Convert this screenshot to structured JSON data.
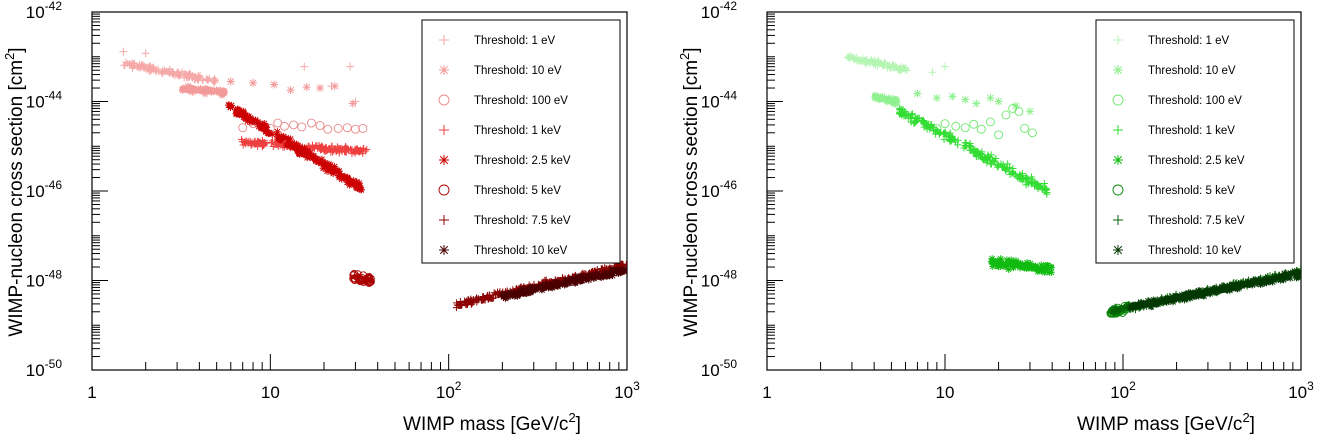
{
  "chart_data": [
    {
      "type": "scatter",
      "panel": "left",
      "xlabel": "WIMP mass [GeV/c²]",
      "ylabel": "WIMP-nucleon cross section [cm²]",
      "xscale": "log",
      "yscale": "log",
      "xlim": [
        1,
        1000
      ],
      "ylim": [
        1e-50,
        1e-42
      ],
      "x_tick_labels": [
        "1",
        "10",
        "10²",
        "10³"
      ],
      "y_tick_labels": [
        "10⁻⁵⁰",
        "10⁻⁴⁸",
        "10⁻⁴⁶",
        "10⁻⁴⁴",
        "10⁻⁴²"
      ],
      "grid": false,
      "legend_position": "top-right",
      "series": [
        {
          "name": "Threshold: 1 eV",
          "color": "#f6a8a8",
          "marker": "plus",
          "band": {
            "x": [
              1.5,
              5.0
            ],
            "y_log": [
              -43.15,
              -43.55
            ],
            "width_log": 0.18
          },
          "points": [
            [
              1.5,
              1.3e-43
            ],
            [
              2.0,
              1.2e-43
            ],
            [
              15.5,
              6e-44
            ],
            [
              22,
              2.2e-44
            ],
            [
              28,
              6e-44
            ],
            [
              30,
              1e-44
            ]
          ]
        },
        {
          "name": "Threshold: 10 eV",
          "color": "#f29a9a",
          "marker": "asterisk",
          "band": {
            "x": [
              3.2,
              5.6
            ],
            "y_log": [
              -43.7,
              -43.8
            ],
            "width_log": 0.18
          },
          "points": [
            [
              6.0,
              2.8e-44
            ],
            [
              8.0,
              2.6e-44
            ],
            [
              10.5,
              2.4e-44
            ],
            [
              13,
              1.8e-44
            ],
            [
              16,
              2.1e-44
            ],
            [
              19,
              2e-44
            ],
            [
              23,
              2.2e-44
            ],
            [
              29,
              9e-45
            ]
          ]
        },
        {
          "name": "Threshold: 100 eV",
          "color": "#e88787",
          "marker": "circle",
          "band": null,
          "points": [
            [
              7,
              2.6e-45
            ],
            [
              8,
              3.2e-45
            ],
            [
              9,
              3e-45
            ],
            [
              10,
              2.5e-45
            ],
            [
              11,
              3.3e-45
            ],
            [
              12,
              2.8e-45
            ],
            [
              13.5,
              3e-45
            ],
            [
              15,
              2.7e-45
            ],
            [
              17,
              3.3e-45
            ],
            [
              19,
              2.9e-45
            ],
            [
              21,
              2.4e-45
            ],
            [
              24,
              2.5e-45
            ],
            [
              27,
              2.6e-45
            ],
            [
              30,
              2.4e-45
            ],
            [
              33,
              2.5e-45
            ]
          ]
        },
        {
          "name": "Threshold: 1 keV",
          "color": "#ee3f3f",
          "marker": "plus",
          "band": {
            "x": [
              6.8,
              35
            ],
            "y_log": [
              -44.9,
              -45.12
            ],
            "width_log": 0.2
          },
          "points": []
        },
        {
          "name": "Threshold: 2.5 keV",
          "color": "#cc0000",
          "marker": "asterisk",
          "band": {
            "x": [
              5.8,
              33
            ],
            "y_log": [
              -44.1,
              -45.95
            ],
            "width_log": 0.28
          },
          "points": []
        },
        {
          "name": "Threshold: 5 keV",
          "color": "#aa0000",
          "marker": "circle",
          "band": {
            "x": [
              29,
              37
            ],
            "y_log": [
              -47.95,
              -48.0
            ],
            "width_log": 0.28
          },
          "points": []
        },
        {
          "name": "Threshold: 7.5 keV",
          "color": "#8b0000",
          "marker": "plus",
          "band": {
            "x": [
              110,
              1000
            ],
            "y_log": [
              -48.55,
              -47.65
            ],
            "width_log": 0.2
          },
          "points": []
        },
        {
          "name": "Threshold: 10 keV",
          "color": "#4a0000",
          "marker": "asterisk",
          "band": {
            "x": [
              200,
              1000
            ],
            "y_log": [
              -48.35,
              -47.75
            ],
            "width_log": 0.2
          },
          "points": []
        }
      ]
    },
    {
      "type": "scatter",
      "panel": "right",
      "xlabel": "WIMP mass [GeV/c²]",
      "ylabel": "WIMP-nucleon cross section [cm²]",
      "xscale": "log",
      "yscale": "log",
      "xlim": [
        1,
        1000
      ],
      "ylim": [
        1e-50,
        1e-42
      ],
      "x_tick_labels": [
        "1",
        "10",
        "10²",
        "10³"
      ],
      "y_tick_labels": [
        "10⁻⁵⁰",
        "10⁻⁴⁸",
        "10⁻⁴⁶",
        "10⁻⁴⁴",
        "10⁻⁴²"
      ],
      "grid": false,
      "legend_position": "top-right",
      "series": [
        {
          "name": "Threshold: 1 eV",
          "color": "#b4f5b4",
          "marker": "plus",
          "band": {
            "x": [
              2.8,
              6.2
            ],
            "y_log": [
              -43.0,
              -43.3
            ],
            "width_log": 0.2
          },
          "points": [
            [
              8.5,
              4.5e-44
            ],
            [
              10,
              6e-44
            ]
          ]
        },
        {
          "name": "Threshold: 10 eV",
          "color": "#8ef08e",
          "marker": "asterisk",
          "band": {
            "x": [
              4.0,
              5.5
            ],
            "y_log": [
              -43.9,
              -44.0
            ],
            "width_log": 0.2
          },
          "points": [
            [
              7,
              1.5e-44
            ],
            [
              9,
              1.2e-44
            ],
            [
              11,
              1.3e-44
            ],
            [
              13,
              1.1e-44
            ],
            [
              15,
              9e-45
            ],
            [
              18,
              1.2e-44
            ],
            [
              20,
              1e-44
            ],
            [
              25,
              8e-45
            ],
            [
              30,
              6e-45
            ]
          ]
        },
        {
          "name": "Threshold: 100 eV",
          "color": "#6ee86e",
          "marker": "circle",
          "band": null,
          "points": [
            [
              8,
              3e-45
            ],
            [
              9,
              2.5e-45
            ],
            [
              10,
              3.2e-45
            ],
            [
              11.5,
              2.8e-45
            ],
            [
              13,
              2.6e-45
            ],
            [
              14.5,
              3.1e-45
            ],
            [
              16,
              2.4e-45
            ],
            [
              18,
              3.5e-45
            ],
            [
              20,
              1.8e-45
            ],
            [
              22,
              5e-45
            ],
            [
              24,
              7e-45
            ],
            [
              26,
              6e-45
            ],
            [
              28,
              2.5e-45
            ],
            [
              31,
              2e-45
            ]
          ]
        },
        {
          "name": "Threshold: 1 keV",
          "color": "#33dd33",
          "marker": "plus",
          "band": {
            "x": [
              5.5,
              38
            ],
            "y_log": [
              -44.2,
              -46.0
            ],
            "width_log": 0.3
          },
          "points": []
        },
        {
          "name": "Threshold: 2.5 keV",
          "color": "#11bb11",
          "marker": "asterisk",
          "band": {
            "x": [
              18,
              40
            ],
            "y_log": [
              -47.6,
              -47.75
            ],
            "width_log": 0.3
          },
          "points": []
        },
        {
          "name": "Threshold: 5 keV",
          "color": "#0a8a0a",
          "marker": "circle",
          "band": {
            "x": [
              85,
              110
            ],
            "y_log": [
              -48.7,
              -48.6
            ],
            "width_log": 0.2
          },
          "points": []
        },
        {
          "name": "Threshold: 7.5 keV",
          "color": "#066006",
          "marker": "plus",
          "band": {
            "x": [
              85,
              1000
            ],
            "y_log": [
              -48.7,
              -47.8
            ],
            "width_log": 0.2
          },
          "points": []
        },
        {
          "name": "Threshold: 10 keV",
          "color": "#033803",
          "marker": "asterisk",
          "band": {
            "x": [
              110,
              1000
            ],
            "y_log": [
              -48.6,
              -47.85
            ],
            "width_log": 0.2
          },
          "points": []
        }
      ]
    }
  ]
}
